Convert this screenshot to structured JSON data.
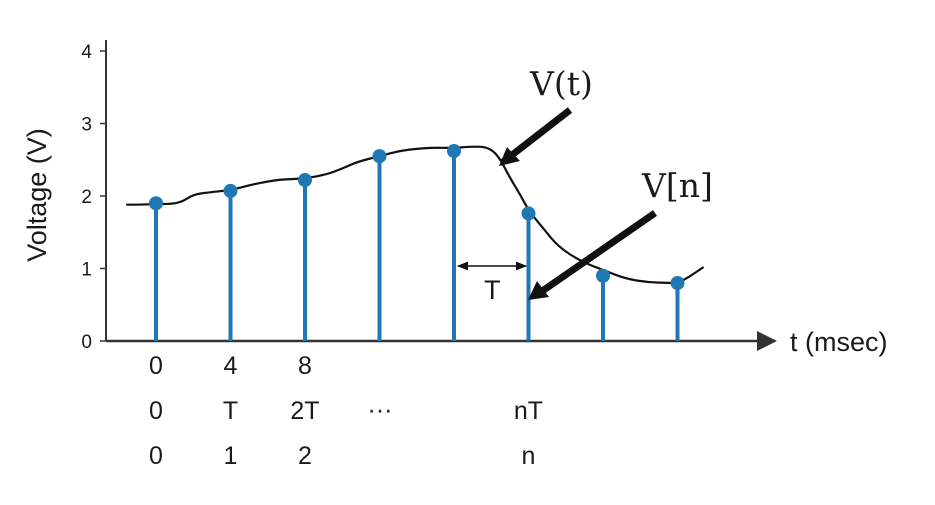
{
  "chart_data": {
    "type": "scatter",
    "xlabel": "t (msec)",
    "ylabel": "Voltage (V)",
    "yticks": [
      "0",
      "1",
      "2",
      "3",
      "4"
    ],
    "ylim": [
      0,
      4.3
    ],
    "grid": false,
    "signal": {
      "label": "V(t)",
      "samples_label": "V[n]",
      "sample_values": [
        1.9,
        2.07,
        2.22,
        2.55,
        2.62,
        1.76,
        0.9,
        0.8
      ],
      "curve": [
        [
          -0.4,
          1.88
        ],
        [
          -0.2,
          1.88
        ],
        [
          0,
          1.89
        ],
        [
          0.2,
          1.89
        ],
        [
          0.35,
          1.92
        ],
        [
          0.5,
          2.02
        ],
        [
          0.7,
          2.05
        ],
        [
          1.0,
          2.08
        ],
        [
          1.3,
          2.16
        ],
        [
          1.5,
          2.2
        ],
        [
          1.7,
          2.23
        ],
        [
          2.0,
          2.24
        ],
        [
          2.3,
          2.3
        ],
        [
          2.5,
          2.38
        ],
        [
          2.7,
          2.47
        ],
        [
          3.0,
          2.55
        ],
        [
          3.3,
          2.63
        ],
        [
          3.7,
          2.67
        ],
        [
          4.0,
          2.66
        ],
        [
          4.2,
          2.68
        ],
        [
          4.45,
          2.68
        ],
        [
          4.6,
          2.55
        ],
        [
          4.75,
          2.25
        ],
        [
          4.9,
          2.0
        ],
        [
          5.0,
          1.8
        ],
        [
          5.2,
          1.55
        ],
        [
          5.4,
          1.3
        ],
        [
          5.7,
          1.1
        ],
        [
          6.0,
          0.98
        ],
        [
          6.3,
          0.86
        ],
        [
          6.6,
          0.81
        ],
        [
          6.9,
          0.8
        ],
        [
          7.0,
          0.8
        ],
        [
          7.15,
          0.88
        ],
        [
          7.35,
          1.02
        ]
      ]
    },
    "period_label": "T",
    "index_rows": [
      [
        "0",
        "4",
        "8",
        "",
        "",
        "",
        "",
        ""
      ],
      [
        "0",
        "T",
        "2T",
        "",
        "",
        "nT",
        "",
        ""
      ],
      [
        "0",
        "1",
        "2",
        "",
        "",
        "n",
        "",
        ""
      ]
    ],
    "ellipsis": "···"
  }
}
